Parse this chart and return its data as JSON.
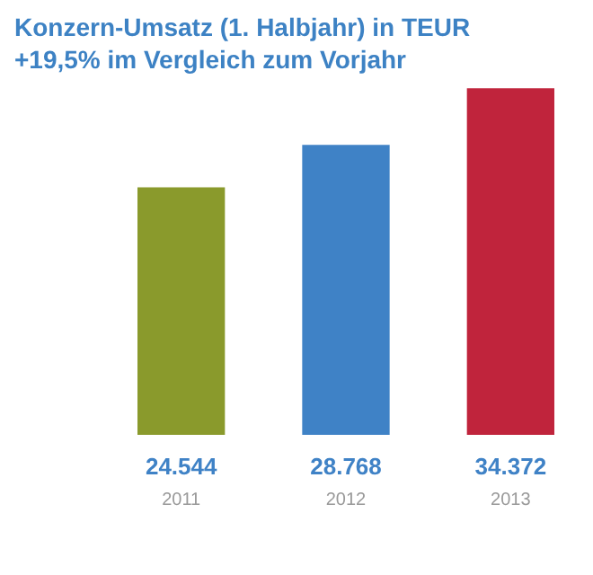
{
  "chart_data": {
    "type": "bar",
    "title": "Konzern-Umsatz (1. Halbjahr) in TEUR",
    "subtitle": "+19,5% im Vergleich zum Vorjahr",
    "categories": [
      "2011",
      "2012",
      "2013"
    ],
    "values": [
      24544,
      28768,
      34372
    ],
    "colors": [
      "#8a9a2c",
      "#3f82c6",
      "#c0243c"
    ],
    "value_labels": [
      "24.544",
      "28.768",
      "34.372"
    ],
    "legend": false,
    "grid": false
  }
}
